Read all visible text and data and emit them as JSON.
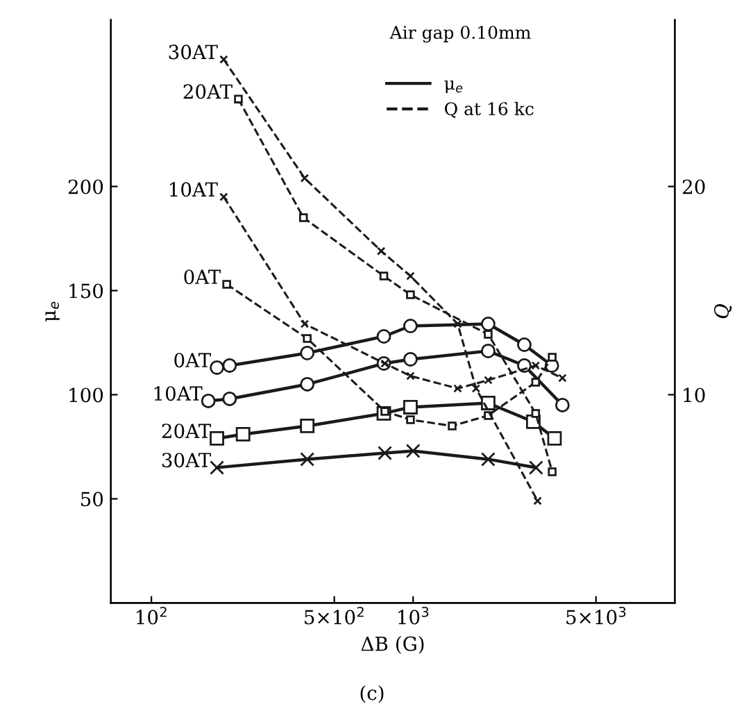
{
  "chart_data": {
    "type": "line",
    "title": "Air gap 0.10mm",
    "xlabel": "ΔB (G)",
    "ylabel": "μ$_{e}$",
    "y2label": "Q",
    "log": "x",
    "xlim": [
      70,
      10000
    ],
    "xticks": [
      {
        "value": 100,
        "label": "10$^{2}$"
      },
      {
        "value": 500,
        "label": "5×10$^{2}$"
      },
      {
        "value": 1000,
        "label": "10$^{3}$"
      },
      {
        "value": 5000,
        "label": "5×10$^{3}$"
      }
    ],
    "ylim": [
      0,
      280
    ],
    "yticks": [
      50,
      100,
      150,
      200
    ],
    "y2lim": [
      0,
      28
    ],
    "y2ticks": [
      10,
      20
    ],
    "grid": false,
    "legend": "top",
    "series": [
      {
        "name": "0AT",
        "color": "#1a1a1a",
        "line_style": "solid",
        "marker": "circle",
        "x": [
          178,
          199,
          394,
          773,
          977,
          1936,
          2660,
          3390
        ],
        "values": [
          113,
          114,
          120,
          128,
          133,
          134,
          124,
          114
        ]
      },
      {
        "name": "10AT",
        "color": "#1a1a1a",
        "line_style": "solid",
        "marker": "circle",
        "x": [
          165,
          199,
          394,
          773,
          977,
          1936,
          2660,
          3720
        ],
        "values": [
          97,
          98,
          105,
          115,
          117,
          121,
          114,
          95
        ]
      },
      {
        "name": "20AT",
        "color": "#1a1a1a",
        "line_style": "solid",
        "marker": "square",
        "x": [
          178,
          224,
          394,
          773,
          977,
          1936,
          2880,
          3470
        ],
        "values": [
          79,
          81,
          85,
          91,
          94,
          96,
          87,
          79
        ]
      },
      {
        "name": "30AT",
        "color": "#1a1a1a",
        "line_style": "solid",
        "marker": "cross",
        "x": [
          178,
          394,
          780,
          1000,
          1936,
          2950
        ],
        "values": [
          65,
          69,
          72,
          73,
          69,
          65
        ]
      },
      {
        "name": "0AT",
        "color": "#1a1a1a",
        "line_style": "dashed",
        "marker": "square",
        "axis": "y2",
        "x": [
          194,
          394,
          780,
          977,
          1410,
          1936,
          2940,
          3400
        ],
        "values": [
          15.3,
          12.7,
          9.2,
          8.8,
          8.5,
          9.0,
          10.6,
          11.8
        ]
      },
      {
        "name": "10AT",
        "color": "#1a1a1a",
        "line_style": "dashed",
        "marker": "cross",
        "axis": "y2",
        "x": [
          189,
          385,
          780,
          977,
          1480,
          1936,
          2940,
          3720
        ],
        "values": [
          19.5,
          13.4,
          11.5,
          10.9,
          10.3,
          10.7,
          11.4,
          10.8
        ]
      },
      {
        "name": "20AT",
        "color": "#1a1a1a",
        "line_style": "dashed",
        "marker": "square",
        "axis": "y2",
        "x": [
          215,
          381,
          773,
          977,
          1936,
          2940,
          3400
        ],
        "values": [
          24.2,
          18.5,
          15.7,
          14.8,
          12.9,
          9.1,
          6.3
        ]
      },
      {
        "name": "30AT",
        "color": "#1a1a1a",
        "line_style": "dashed",
        "marker": "cross",
        "axis": "y2",
        "x": [
          189,
          385,
          755,
          977,
          1480,
          1740,
          2990
        ],
        "values": [
          26.1,
          20.4,
          16.9,
          15.7,
          13.4,
          10.3,
          4.9
        ]
      }
    ],
    "annotations": [
      "μ$_{e}$",
      "Q at 16 kc",
      "(c)"
    ]
  }
}
